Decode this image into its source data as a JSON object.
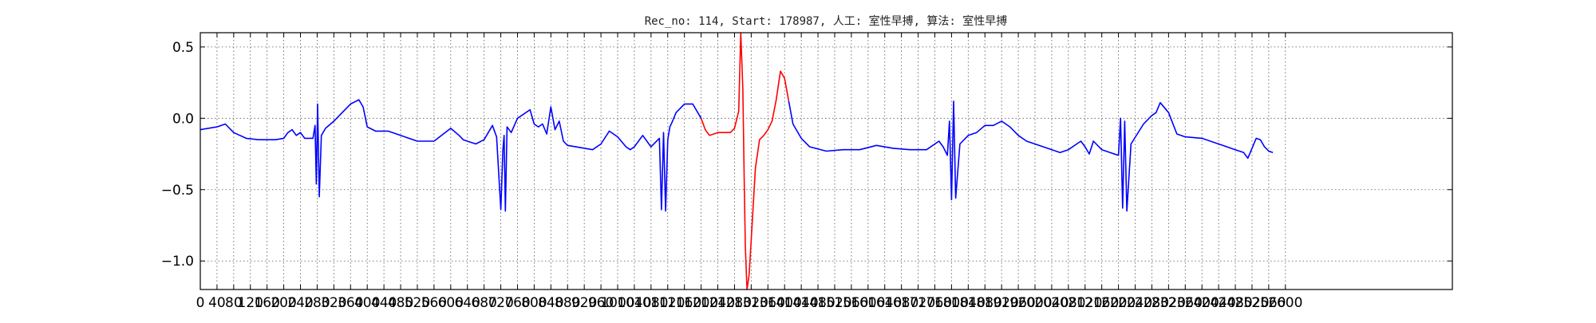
{
  "chart_data": {
    "type": "line",
    "title": "Rec_no: 114, Start: 178987, 人工: 室性早搏, 算法: 室性早搏",
    "xlabel": "",
    "ylabel": "",
    "xlim": [
      0,
      3000
    ],
    "ylim": [
      -1.2,
      0.6
    ],
    "grid": true,
    "grid_style": "dotted",
    "yticks": [
      -1.0,
      -0.5,
      0.0,
      0.5
    ],
    "ytick_labels": [
      "−1.0",
      "−0.5",
      "0.0",
      "0.5"
    ],
    "xtick_step": 40,
    "xtick_labels": [
      "0",
      "40",
      "80",
      "120",
      "160",
      "200",
      "240",
      "280",
      "320",
      "360",
      "400",
      "440",
      "480",
      "520",
      "560",
      "600",
      "640",
      "680",
      "720",
      "760",
      "800",
      "840",
      "880",
      "920",
      "960",
      "1000",
      "1040",
      "1080",
      "1120",
      "1160",
      "1200",
      "1240",
      "1280",
      "1320",
      "1360",
      "1400",
      "1440",
      "1480",
      "1520",
      "1560",
      "1600",
      "1640",
      "1680",
      "1720",
      "1760",
      "1800",
      "1840",
      "1880",
      "1920",
      "1960",
      "2000",
      "2040",
      "2080",
      "2120",
      "2160",
      "2200",
      "2240",
      "2280",
      "2320",
      "2360",
      "2400",
      "2440",
      "2480",
      "2520",
      "2560",
      "2600"
    ],
    "series": [
      {
        "color": "#0000ff",
        "x": [
          0,
          40,
          60,
          80,
          110,
          140,
          180,
          200,
          210,
          220,
          230,
          240,
          250,
          260,
          270,
          275,
          278,
          281,
          285,
          290,
          300,
          320,
          340,
          360,
          380,
          390,
          400,
          420,
          450,
          480,
          520,
          560,
          600,
          620,
          630,
          640,
          660,
          680,
          700,
          710,
          720,
          725,
          728,
          731,
          735,
          745,
          760,
          790,
          800,
          810,
          820,
          830,
          840,
          850,
          860,
          870,
          880,
          900,
          940,
          960,
          980,
          1000,
          1020,
          1030,
          1040,
          1060,
          1080,
          1100,
          1105,
          1110,
          1115,
          1120,
          1125,
          1130,
          1140,
          1160,
          1180,
          1200
        ],
        "y": [
          -0.08,
          -0.06,
          -0.04,
          -0.1,
          -0.14,
          -0.15,
          -0.15,
          -0.14,
          -0.1,
          -0.08,
          -0.12,
          -0.1,
          -0.14,
          -0.14,
          -0.14,
          -0.05,
          -0.46,
          0.1,
          -0.55,
          -0.12,
          -0.07,
          -0.02,
          0.04,
          0.1,
          0.13,
          0.08,
          -0.06,
          -0.09,
          -0.09,
          -0.12,
          -0.16,
          -0.16,
          -0.07,
          -0.12,
          -0.15,
          -0.16,
          -0.18,
          -0.15,
          -0.05,
          -0.13,
          -0.64,
          -0.22,
          -0.12,
          -0.65,
          -0.06,
          -0.1,
          0.0,
          0.06,
          -0.04,
          -0.06,
          -0.04,
          -0.11,
          0.08,
          -0.08,
          -0.02,
          -0.16,
          -0.19,
          -0.2,
          -0.22,
          -0.18,
          -0.09,
          -0.13,
          -0.2,
          -0.22,
          -0.2,
          -0.12,
          -0.2,
          -0.14,
          -0.64,
          -0.1,
          -0.65,
          -0.15,
          -0.06,
          -0.03,
          0.04,
          0.1,
          0.1,
          0.0
        ]
      },
      {
        "color": "#ff0000",
        "x": [
          1200,
          1210,
          1220,
          1240,
          1270,
          1280,
          1290,
          1295,
          1300,
          1303,
          1306,
          1310,
          1315,
          1320,
          1325,
          1330,
          1340,
          1350,
          1360,
          1370,
          1380,
          1390,
          1400,
          1410
        ],
        "y": [
          0.0,
          -0.08,
          -0.12,
          -0.1,
          -0.1,
          -0.07,
          0.05,
          0.6,
          0.2,
          -0.4,
          -0.9,
          -1.2,
          -1.1,
          -0.85,
          -0.6,
          -0.35,
          -0.15,
          -0.12,
          -0.08,
          -0.02,
          0.13,
          0.33,
          0.28,
          0.12
        ]
      },
      {
        "color": "#0000ff",
        "x": [
          1410,
          1420,
          1440,
          1460,
          1500,
          1540,
          1580,
          1620,
          1660,
          1700,
          1740,
          1770,
          1780,
          1790,
          1795,
          1800,
          1805,
          1810,
          1820,
          1840,
          1860,
          1880,
          1900,
          1920,
          1940,
          1960,
          1980,
          2020,
          2060,
          2080,
          2100,
          2110,
          2120,
          2130,
          2140,
          2160,
          2180,
          2200,
          2205,
          2210,
          2215,
          2220,
          2230,
          2260,
          2280,
          2290,
          2300,
          2320,
          2340,
          2360,
          2400,
          2440,
          2480,
          2500,
          2510,
          2530,
          2540,
          2550,
          2560,
          2570
        ],
        "y": [
          0.12,
          -0.04,
          -0.14,
          -0.2,
          -0.23,
          -0.22,
          -0.22,
          -0.19,
          -0.21,
          -0.22,
          -0.22,
          -0.16,
          -0.2,
          -0.26,
          -0.02,
          -0.57,
          0.12,
          -0.56,
          -0.18,
          -0.12,
          -0.1,
          -0.05,
          -0.05,
          -0.02,
          -0.06,
          -0.12,
          -0.16,
          -0.2,
          -0.24,
          -0.22,
          -0.18,
          -0.16,
          -0.2,
          -0.25,
          -0.16,
          -0.22,
          -0.24,
          -0.26,
          0.0,
          -0.63,
          -0.02,
          -0.65,
          -0.18,
          -0.04,
          0.02,
          0.04,
          0.11,
          0.04,
          -0.11,
          -0.13,
          -0.14,
          -0.18,
          -0.22,
          -0.24,
          -0.28,
          -0.14,
          -0.15,
          -0.2,
          -0.23,
          -0.24
        ]
      }
    ]
  }
}
